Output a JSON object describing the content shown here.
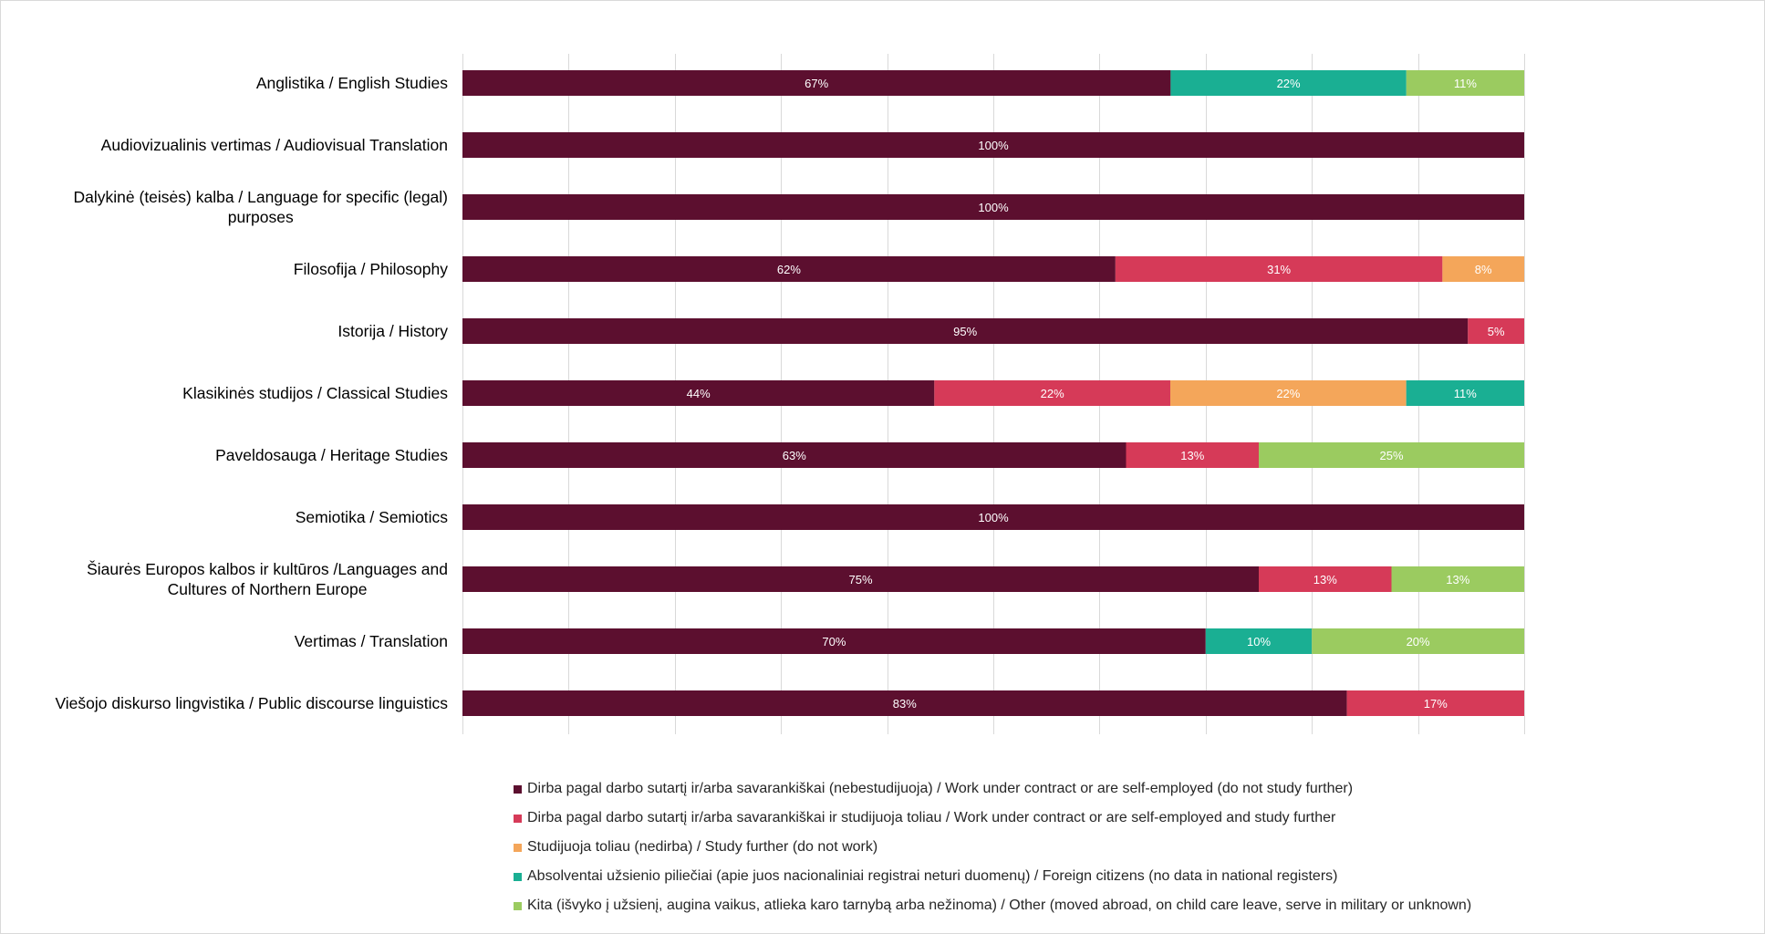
{
  "chart_data": {
    "type": "bar",
    "orientation": "horizontal",
    "stacked": true,
    "percent_stacked": true,
    "xlim": [
      0,
      100
    ],
    "grid": true,
    "legend_position": "bottom",
    "categories": [
      "Anglistika / English Studies",
      "Audiovizualinis vertimas / Audiovisual Translation",
      "Dalykinė (teisės) kalba / Language for specific (legal) purposes",
      "Filosofija / Philosophy",
      "Istorija / History",
      "Klasikinės studijos / Classical Studies",
      "Paveldosauga / Heritage Studies",
      "Semiotika / Semiotics",
      "Šiaurės Europos kalbos ir kultūros /Languages and Cultures of Northern Europe",
      "Vertimas / Translation",
      "Viešojo diskurso lingvistika / Public discourse linguistics"
    ],
    "category_lines": [
      [
        "Anglistika / English Studies"
      ],
      [
        "Audiovizualinis vertimas / Audiovisual Translation"
      ],
      [
        "Dalykinė (teisės) kalba / Language for specific (legal)",
        "purposes"
      ],
      [
        "Filosofija / Philosophy"
      ],
      [
        "Istorija / History"
      ],
      [
        "Klasikinės studijos / Classical Studies"
      ],
      [
        "Paveldosauga / Heritage Studies"
      ],
      [
        "Semiotika / Semiotics"
      ],
      [
        "Šiaurės Europos kalbos ir kultūros /Languages and",
        "Cultures of Northern Europe"
      ],
      [
        "Vertimas / Translation"
      ],
      [
        "Viešojo diskurso lingvistika / Public discourse linguistics"
      ]
    ],
    "series": [
      {
        "name": "Dirba pagal darbo sutartį ir/arba savarankiškai (nebestudijuoja) / Work under contract or are self-employed (do not study further)",
        "color": "#5c0f2f",
        "values": [
          66.7,
          100,
          100,
          61.5,
          94.7,
          44.4,
          62.5,
          100,
          75,
          70,
          83.3
        ],
        "labels": [
          "67%",
          "100%",
          "100%",
          "62%",
          "95%",
          "44%",
          "63%",
          "100%",
          "75%",
          "70%",
          "83%"
        ]
      },
      {
        "name": "Dirba pagal darbo sutartį ir/arba savarankiškai  ir studijuoja toliau / Work under contract or are self-employed and study further",
        "color": "#d63a58",
        "values": [
          0,
          0,
          0,
          30.8,
          5.3,
          22.2,
          12.5,
          0,
          12.5,
          0,
          16.7
        ],
        "labels": [
          "",
          "",
          "",
          "31%",
          "5%",
          "22%",
          "13%",
          "",
          "13%",
          "",
          "17%"
        ]
      },
      {
        "name": "Studijuoja toliau (nedirba) / Study further (do not work)",
        "color": "#f4a65a",
        "values": [
          0,
          0,
          0,
          7.7,
          0,
          22.2,
          0,
          0,
          0,
          0,
          0
        ],
        "labels": [
          "",
          "",
          "",
          "8%",
          "",
          "22%",
          "",
          "",
          "",
          "",
          ""
        ]
      },
      {
        "name": "Absolventai užsienio piliečiai (apie juos nacionaliniai registrai neturi duomenų) / Foreign citizens (no data in national registers)",
        "color": "#1aaf93",
        "values": [
          22.2,
          0,
          0,
          0,
          0,
          11.1,
          0,
          0,
          0,
          10,
          0
        ],
        "labels": [
          "22%",
          "",
          "",
          "",
          "",
          "11%",
          "",
          "",
          "",
          "10%",
          ""
        ]
      },
      {
        "name": "Kita (išvyko į užsienį, augina vaikus, atlieka karo tarnybą arba nežinoma) / Other (moved abroad, on child care leave, serve in military or unknown)",
        "color": "#9bcb60",
        "values": [
          11.1,
          0,
          0,
          0,
          0,
          0,
          25,
          0,
          12.5,
          20,
          0
        ],
        "labels": [
          "11%",
          "",
          "",
          "",
          "",
          "",
          "25%",
          "",
          "13%",
          "20%",
          ""
        ]
      }
    ]
  }
}
